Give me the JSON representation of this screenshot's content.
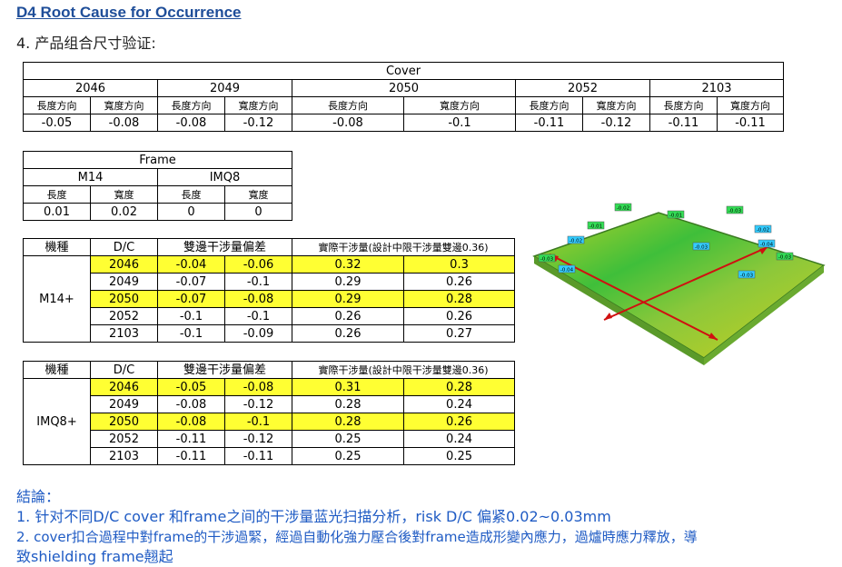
{
  "header": {
    "title": "D4 Root Cause for Occurrence",
    "subtitle": "4. 产品组合尺寸验证:"
  },
  "cover_table": {
    "caption": "Cover",
    "groups": [
      "2046",
      "2049",
      "2050",
      "2052",
      "2103"
    ],
    "subheaders": [
      "長度方向",
      "寬度方向",
      "長度方向",
      "寬度方向",
      "長度方向",
      "寬度方向",
      "長度方向",
      "寬度方向",
      "長度方向",
      "寬度方向"
    ],
    "values": [
      "-0.05",
      "-0.08",
      "-0.08",
      "-0.12",
      "-0.08",
      "-0.1",
      "-0.11",
      "-0.12",
      "-0.11",
      "-0.11"
    ]
  },
  "frame_table": {
    "caption": "Frame",
    "groups": [
      "M14",
      "IMQ8"
    ],
    "subheaders": [
      "長度",
      "寬度",
      "長度",
      "寬度"
    ],
    "values": [
      "0.01",
      "0.02",
      "0",
      "0"
    ]
  },
  "m14_table": {
    "headers": [
      "機種",
      "D/C",
      "雙邊干涉量偏差",
      "實際干涉量(設計中限干涉量雙邊0.36)"
    ],
    "model": "M14+",
    "rows": [
      {
        "dc": "2046",
        "d1": "-0.04",
        "d2": "-0.06",
        "a1": "0.32",
        "a2": "0.3",
        "highlight": true
      },
      {
        "dc": "2049",
        "d1": "-0.07",
        "d2": "-0.1",
        "a1": "0.29",
        "a2": "0.26",
        "highlight": false
      },
      {
        "dc": "2050",
        "d1": "-0.07",
        "d2": "-0.08",
        "a1": "0.29",
        "a2": "0.28",
        "highlight": true
      },
      {
        "dc": "2052",
        "d1": "-0.1",
        "d2": "-0.1",
        "a1": "0.26",
        "a2": "0.26",
        "highlight": false
      },
      {
        "dc": "2103",
        "d1": "-0.1",
        "d2": "-0.09",
        "a1": "0.26",
        "a2": "0.27",
        "highlight": false
      }
    ]
  },
  "imq8_table": {
    "headers": [
      "機種",
      "D/C",
      "雙邊干涉量偏差",
      "實際干涉量(設計中限干涉量雙邊0.36)"
    ],
    "model": "IMQ8+",
    "rows": [
      {
        "dc": "2046",
        "d1": "-0.05",
        "d2": "-0.08",
        "a1": "0.31",
        "a2": "0.28",
        "highlight": true
      },
      {
        "dc": "2049",
        "d1": "-0.08",
        "d2": "-0.12",
        "a1": "0.28",
        "a2": "0.24",
        "highlight": false
      },
      {
        "dc": "2050",
        "d1": "-0.08",
        "d2": "-0.1",
        "a1": "0.28",
        "a2": "0.26",
        "highlight": true
      },
      {
        "dc": "2052",
        "d1": "-0.11",
        "d2": "-0.12",
        "a1": "0.25",
        "a2": "0.24",
        "highlight": false
      },
      {
        "dc": "2103",
        "d1": "-0.11",
        "d2": "-0.11",
        "a1": "0.25",
        "a2": "0.25",
        "highlight": false
      }
    ]
  },
  "scan_image": {
    "labels": [
      "-0.02",
      "-0.01",
      "-0.01",
      "-0.02",
      "-0.03",
      "-0.04",
      "-0.03",
      "-0.03",
      "-0.02",
      "-0.04",
      "-0.03",
      "-0.03"
    ]
  },
  "conclusion": {
    "heading": "結論：",
    "line1": "1. 针对不同D/C cover 和frame之间的干涉量蓝光扫描分析，risk D/C 偏紧0.02~0.03mm",
    "line2": "2. cover扣合過程中對frame的干涉過緊，經過自動化強力壓合後對frame造成形變內應力，過爐時應力釋放，導",
    "line3": "致shielding frame翹起"
  }
}
